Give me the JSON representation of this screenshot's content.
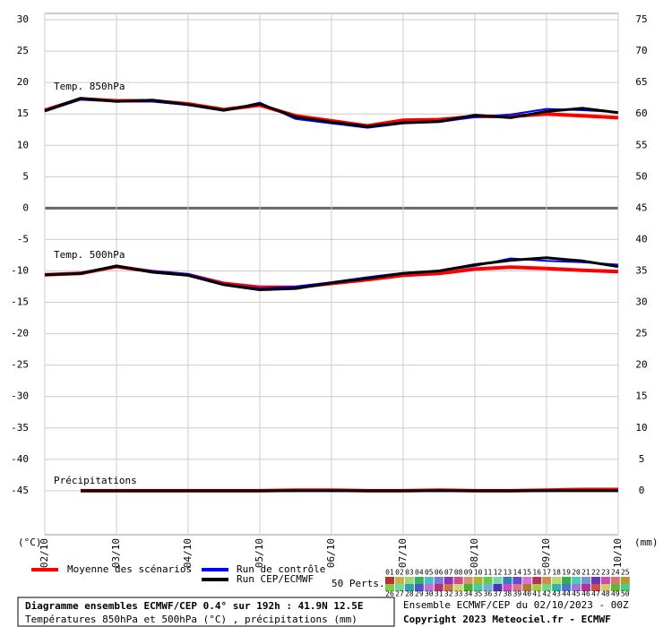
{
  "chart_data": {
    "type": "line",
    "panel_labels": [
      "Temp. 850hPa",
      "Temp. 500hPa",
      "Précipitations"
    ],
    "y_unit_label": "(°C)",
    "y2_unit_label": "(mm)",
    "x": [
      0,
      12,
      24,
      36,
      48,
      60,
      72,
      84,
      96,
      108,
      120,
      132,
      144,
      156,
      168,
      180,
      192
    ],
    "xlim": [
      0,
      192
    ],
    "xticks": [
      {
        "value": 0,
        "label": "02/10"
      },
      {
        "value": 24,
        "label": "03/10"
      },
      {
        "value": 48,
        "label": "04/10"
      },
      {
        "value": 72,
        "label": "05/10"
      },
      {
        "value": 96,
        "label": "06/10"
      },
      {
        "value": 120,
        "label": "07/10"
      },
      {
        "value": 144,
        "label": "08/10"
      },
      {
        "value": 168,
        "label": "09/10"
      },
      {
        "value": 192,
        "label": "10/10"
      }
    ],
    "ylim": [
      -52,
      31
    ],
    "yticks": [
      30,
      25,
      20,
      15,
      10,
      5,
      0,
      -5,
      -10,
      -15,
      -20,
      -25,
      -30,
      -35,
      -40,
      -45
    ],
    "y2lim": [
      -7,
      76
    ],
    "y2ticks": [
      75,
      70,
      65,
      60,
      55,
      50,
      45,
      40,
      35,
      30,
      25,
      20,
      15,
      10,
      5,
      0
    ],
    "grid": true,
    "series": [
      {
        "name": "Moyenne des scénarios",
        "color": "#ff0000",
        "line_width": 4,
        "values": [
          [
            15.6,
            17.4,
            17.1,
            17.1,
            16.6,
            15.7,
            16.4,
            14.7,
            13.9,
            13.1,
            14.0,
            14.1,
            14.6,
            14.6,
            15.0,
            14.7,
            14.4
          ],
          [
            -10.6,
            -10.4,
            -9.3,
            -10.1,
            -10.6,
            -12.0,
            -12.6,
            -12.6,
            -12.0,
            -11.4,
            -10.7,
            -10.4,
            -9.7,
            -9.4,
            -9.6,
            -9.9,
            -10.1
          ],
          [
            null,
            0,
            0,
            0,
            0,
            0,
            0,
            0.1,
            0.1,
            0,
            0,
            0.1,
            0,
            0,
            0.1,
            0.2,
            0.2
          ]
        ]
      },
      {
        "name": "Run de contrôle",
        "color": "#0000ff",
        "line_width": 2,
        "values": [
          [
            15.4,
            17.3,
            17.0,
            17.0,
            16.4,
            15.5,
            16.8,
            14.2,
            13.5,
            12.8,
            13.5,
            13.7,
            14.5,
            14.9,
            15.8,
            15.6,
            15.3
          ],
          [
            -10.6,
            -10.3,
            -9.3,
            -10.0,
            -10.5,
            -12.1,
            -12.8,
            -12.5,
            -11.8,
            -11.0,
            -10.3,
            -10.0,
            -9.2,
            -8.0,
            -8.4,
            -8.6,
            -9.0
          ],
          [
            null,
            0,
            0,
            0,
            0,
            0,
            0,
            0,
            0,
            0,
            0,
            0,
            0,
            0,
            0,
            0,
            0
          ]
        ]
      },
      {
        "name": "Run CEP/ECMWF",
        "color": "#000000",
        "line_width": 3,
        "values": [
          [
            15.5,
            17.5,
            17.0,
            17.2,
            16.5,
            15.6,
            16.6,
            14.5,
            13.7,
            13.0,
            13.6,
            13.8,
            14.8,
            14.4,
            15.4,
            15.9,
            15.2
          ],
          [
            -10.6,
            -10.4,
            -9.2,
            -10.2,
            -10.7,
            -12.2,
            -13.0,
            -12.8,
            -11.9,
            -11.2,
            -10.4,
            -10.0,
            -9.0,
            -8.3,
            -7.9,
            -8.4,
            -9.3
          ],
          [
            null,
            0,
            0,
            0,
            0,
            0,
            0,
            0,
            0,
            0,
            0,
            0,
            0,
            0,
            0,
            0,
            0
          ]
        ]
      }
    ],
    "perturbations_label": "50 Perts.",
    "perturbation_numbers": [
      "01",
      "02",
      "03",
      "04",
      "05",
      "06",
      "07",
      "08",
      "09",
      "10",
      "11",
      "12",
      "13",
      "14",
      "15",
      "16",
      "17",
      "18",
      "19",
      "20",
      "21",
      "22",
      "23",
      "24",
      "25",
      "26",
      "27",
      "28",
      "29",
      "30",
      "31",
      "32",
      "33",
      "34",
      "35",
      "36",
      "37",
      "38",
      "39",
      "40",
      "41",
      "42",
      "43",
      "44",
      "45",
      "46",
      "47",
      "48",
      "49",
      "50"
    ],
    "footer": {
      "title": "Diagramme ensembles ECMWF/CEP 0.4° sur 192h : 41.9N 12.5E",
      "subtitle": "Températures 850hPa et 500hPa (°C) , précipitations (mm)",
      "run": "Ensemble ECMWF/CEP du 02/10/2023 - 00Z",
      "copyright": "Copyright 2023 Meteociel.fr - ECMWF"
    }
  }
}
